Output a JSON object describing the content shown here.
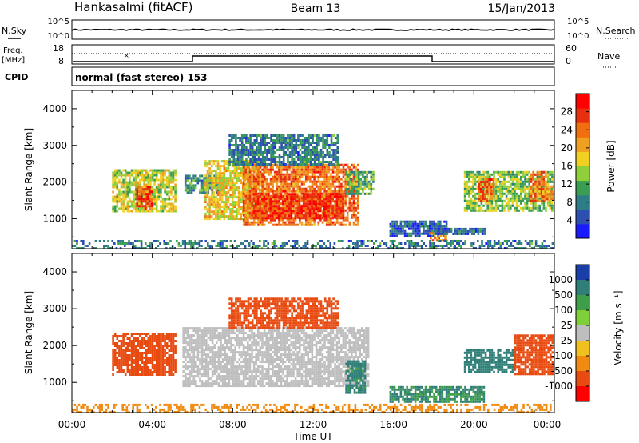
{
  "header": {
    "title": "Hankasalmi (fitACF)",
    "beam": "Beam 13",
    "date": "15/Jan/2013"
  },
  "noise_panel": {
    "left_label": "N.Sky",
    "right_label": "N.Search",
    "left_ticks": [
      "10^5",
      "10^0"
    ],
    "right_ticks": [
      "10^5",
      "10^0"
    ]
  },
  "freq_panel": {
    "left_label_1": "Freq.",
    "left_label_2": "[MHz]",
    "left_ticks": [
      "18",
      "8"
    ],
    "right_label": "Nave",
    "right_ticks": [
      "60",
      "0"
    ],
    "cpid_label": "CPID",
    "cpid_text": "normal (fast stereo) 153"
  },
  "time_axis": {
    "label": "Time UT",
    "ticks": [
      "00:00",
      "04:00",
      "08:00",
      "12:00",
      "16:00",
      "20:00",
      "00:00"
    ]
  },
  "range_axis": {
    "label": "Slant Range [km]",
    "ticks": [
      "1000",
      "2000",
      "3000",
      "4000"
    ]
  },
  "colors": {
    "scale": [
      "#1a1aff",
      "#2c4fb0",
      "#2e7d86",
      "#3a9e52",
      "#8fcf3a",
      "#f0d020",
      "#f0a020",
      "#f07010",
      "#e83010",
      "#ff0000"
    ],
    "ground_scatter": "#bebebe"
  },
  "chart_data": [
    {
      "type": "heatmap",
      "name": "Power",
      "title": "Power [dB]",
      "xlabel": "Time UT",
      "ylabel": "Slant Range [km]",
      "xlim": [
        0,
        24
      ],
      "ylim": [
        180,
        4500
      ],
      "colorbar": {
        "label": "Power [dB]",
        "ticks": [
          "4",
          "8",
          "12",
          "16",
          "20",
          "24",
          "28"
        ],
        "range": [
          0,
          32
        ]
      },
      "regions": [
        {
          "t0": 2.0,
          "t1": 5.2,
          "r0": 1200,
          "r1": 2350,
          "value": 16
        },
        {
          "t0": 3.2,
          "t1": 4.0,
          "r0": 1300,
          "r1": 1900,
          "value": 26
        },
        {
          "t0": 5.6,
          "t1": 7.5,
          "r0": 1700,
          "r1": 2200,
          "value": 10
        },
        {
          "t0": 6.6,
          "t1": 9.5,
          "r0": 1000,
          "r1": 2600,
          "value": 18
        },
        {
          "t0": 8.5,
          "t1": 14.2,
          "r0": 800,
          "r1": 2500,
          "value": 24
        },
        {
          "t0": 9.0,
          "t1": 13.5,
          "r0": 1000,
          "r1": 1700,
          "value": 28
        },
        {
          "t0": 7.8,
          "t1": 13.2,
          "r0": 2500,
          "r1": 3300,
          "value": 8
        },
        {
          "t0": 13.6,
          "t1": 15.0,
          "r0": 1700,
          "r1": 2300,
          "value": 12
        },
        {
          "t0": 15.8,
          "t1": 18.6,
          "r0": 550,
          "r1": 950,
          "value": 6
        },
        {
          "t0": 17.8,
          "t1": 18.6,
          "r0": 400,
          "r1": 700,
          "value": 22
        },
        {
          "t0": 18.0,
          "t1": 20.5,
          "r0": 600,
          "r1": 750,
          "value": 6
        },
        {
          "t0": 19.5,
          "t1": 24.0,
          "r0": 1250,
          "r1": 2300,
          "value": 14
        },
        {
          "t0": 20.2,
          "t1": 21.0,
          "r0": 1500,
          "r1": 2100,
          "value": 24
        },
        {
          "t0": 22.8,
          "t1": 23.6,
          "r0": 1450,
          "r1": 2300,
          "value": 24
        },
        {
          "t0": 23.4,
          "t1": 24.0,
          "r0": 1500,
          "r1": 1900,
          "value": 22
        },
        {
          "t0": 0.0,
          "t1": 24.0,
          "r0": 180,
          "r1": 420,
          "value": 8
        }
      ]
    },
    {
      "type": "heatmap",
      "name": "Velocity",
      "title": "Velocity [m s-1]",
      "xlabel": "Time UT",
      "ylabel": "Slant Range [km]",
      "xlim": [
        0,
        24
      ],
      "ylim": [
        180,
        4500
      ],
      "colorbar": {
        "label": "Velocity [m s⁻¹]",
        "ticks": [
          "1000",
          "500",
          "100",
          "25",
          "-25",
          "-100",
          "-500",
          "-1000"
        ],
        "range": [
          -1000,
          1000
        ]
      },
      "regions": [
        {
          "t0": 2.0,
          "t1": 5.2,
          "r0": 1200,
          "r1": 2350,
          "value": -220
        },
        {
          "t0": 5.5,
          "t1": 14.7,
          "r0": 900,
          "r1": 2500,
          "value": 0,
          "ground_scatter": true
        },
        {
          "t0": 7.8,
          "t1": 13.2,
          "r0": 2500,
          "r1": 3300,
          "value": -250
        },
        {
          "t0": 13.6,
          "t1": 14.6,
          "r0": 700,
          "r1": 1600,
          "value": 150
        },
        {
          "t0": 15.8,
          "t1": 20.5,
          "r0": 500,
          "r1": 900,
          "value": 120
        },
        {
          "t0": 19.5,
          "t1": 22.0,
          "r0": 1250,
          "r1": 1900,
          "value": 300
        },
        {
          "t0": 22.0,
          "t1": 24.0,
          "r0": 1250,
          "r1": 2300,
          "value": -250
        },
        {
          "t0": 0.0,
          "t1": 24.0,
          "r0": 180,
          "r1": 420,
          "value": -60
        }
      ]
    }
  ]
}
